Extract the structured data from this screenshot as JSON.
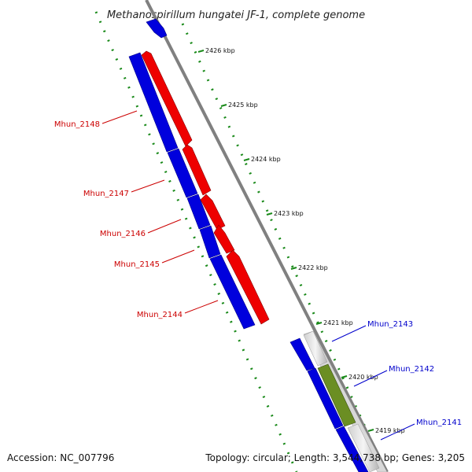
{
  "title": "Methanospirillum hungatei JF-1, complete genome",
  "footer": {
    "accession": "Accession: NC_007796",
    "topology": "Topology: circular; Length: 3,544,738 bp; Genes: 3,205"
  },
  "colors": {
    "reverse_strand": "#ee0000",
    "forward_strand": "#0000dd",
    "highlight_gene": "#6b8e23",
    "backbone": "#808080",
    "tick_marks": "#1a8a1a",
    "reverse_label": "#cc0000",
    "forward_label": "#0000cc"
  },
  "scale_labels": [
    "2426 kbp",
    "2425 kbp",
    "2424 kbp",
    "2423 kbp",
    "2422 kbp",
    "2421 kbp",
    "2420 kbp",
    "2419 kbp"
  ],
  "genes": [
    {
      "id": "Mhun_2148",
      "strand": "reverse"
    },
    {
      "id": "Mhun_2147",
      "strand": "reverse"
    },
    {
      "id": "Mhun_2146",
      "strand": "reverse"
    },
    {
      "id": "Mhun_2145",
      "strand": "reverse"
    },
    {
      "id": "Mhun_2144",
      "strand": "reverse"
    },
    {
      "id": "Mhun_2143",
      "strand": "forward"
    },
    {
      "id": "Mhun_2142",
      "strand": "forward"
    },
    {
      "id": "Mhun_2141",
      "strand": "forward"
    }
  ]
}
